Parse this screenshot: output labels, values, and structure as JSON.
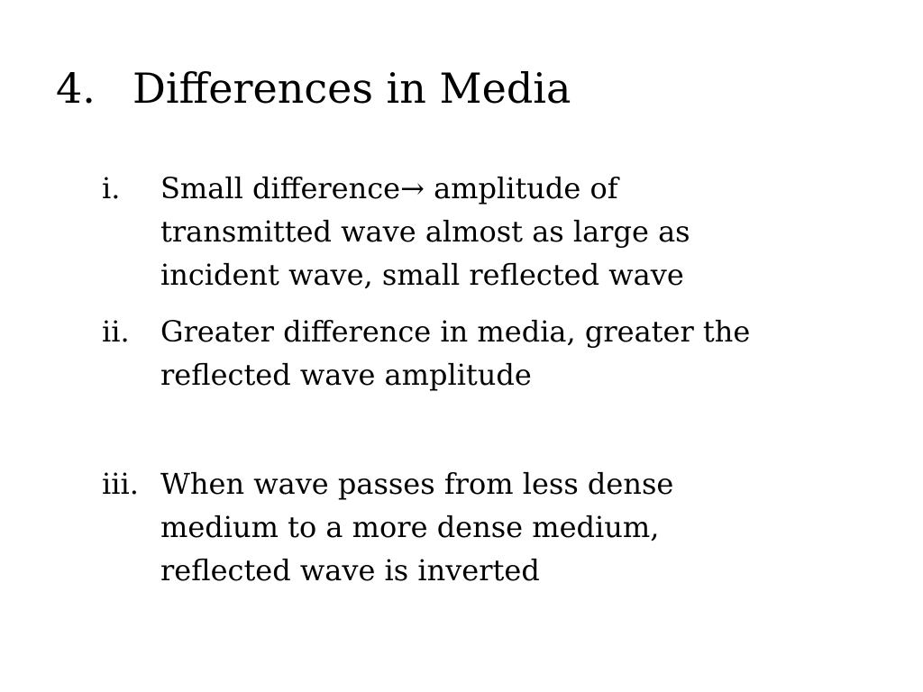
{
  "title": {
    "number": "4.",
    "text": "Differences in Media"
  },
  "items": [
    {
      "marker": "i.",
      "lines": [
        "Small difference→ amplitude of",
        "transmitted wave almost as large as",
        "incident wave, small reflected wave"
      ]
    },
    {
      "marker": "ii.",
      "lines": [
        "Greater difference in media, greater the",
        "reflected wave amplitude"
      ]
    },
    {
      "marker": "iii.",
      "lines": [
        "When wave passes from less dense",
        "medium to a more dense medium,",
        "reflected wave is inverted"
      ]
    }
  ]
}
